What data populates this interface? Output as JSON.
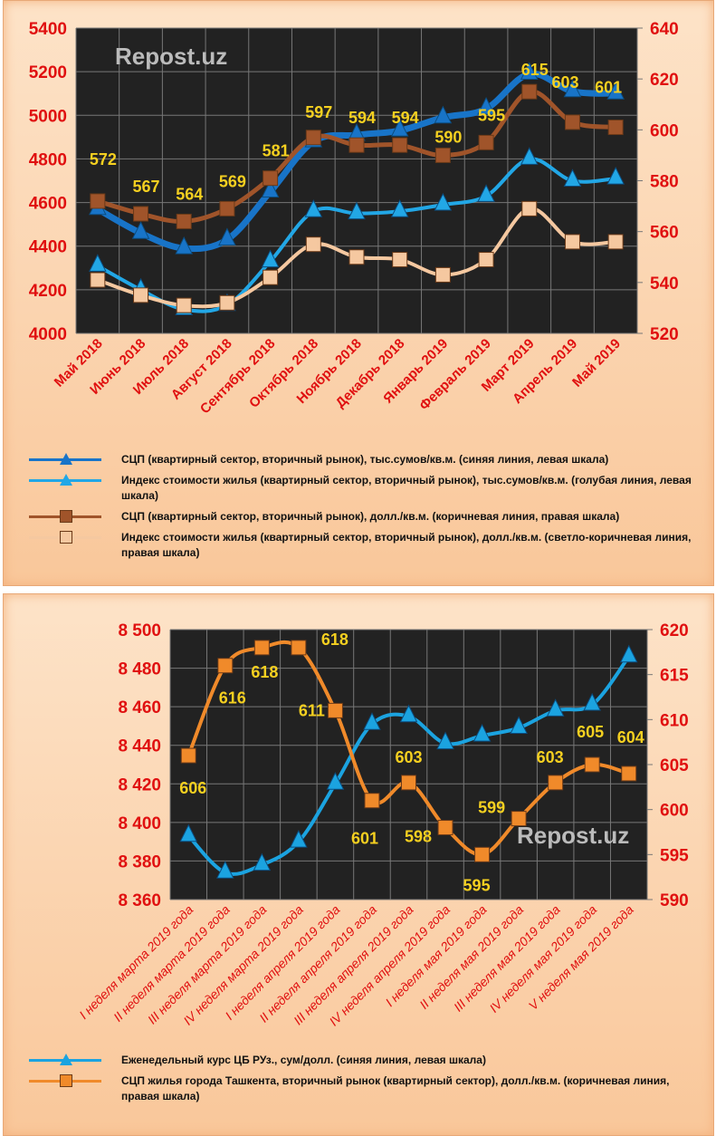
{
  "chart_data": [
    {
      "type": "line",
      "watermark": "Repost.uz",
      "categories": [
        "Май 2018",
        "Июнь 2018",
        "Июль 2018",
        "Август 2018",
        "Сентябрь 2018",
        "Октябрь 2018",
        "Ноябрь 2018",
        "Декабрь 2018",
        "Январь 2019",
        "Февраль 2019",
        "Март 2019",
        "Апрель 2019",
        "Май 2019"
      ],
      "ylim_left": [
        4000,
        5400
      ],
      "yticks_left": [
        4000,
        4200,
        4400,
        4600,
        4800,
        5000,
        5200,
        5400
      ],
      "ylim_right": [
        520,
        640
      ],
      "yticks_right": [
        520,
        540,
        560,
        580,
        600,
        620,
        640
      ],
      "series": [
        {
          "name": "СЦП (квартирный сектор, вторичный рынок), тыс.сумов/кв.м. (синяя линия,  левая шкала)",
          "axis": "left",
          "color": "#1874c8",
          "marker": "triangle",
          "values": [
            4570,
            4460,
            4390,
            4430,
            4650,
            4880,
            4910,
            4930,
            4990,
            5030,
            5190,
            5110,
            5100
          ]
        },
        {
          "name": "Индекс стоимости жилья (квартирный сектор, вторичный рынок),  тыс.сумов/кв.м. (голубая линия,  левая шкала)",
          "axis": "left",
          "color": "#22a7e6",
          "marker": "triangle",
          "values": [
            4310,
            4200,
            4110,
            4130,
            4330,
            4560,
            4550,
            4560,
            4590,
            4630,
            4800,
            4700,
            4710
          ]
        },
        {
          "name": "СЦП (квартирный сектор, вторичный рынок),  долл./кв.м. (коричневая линия,  правая шкала)",
          "axis": "right",
          "color": "#a0542a",
          "marker": "square",
          "labels": true,
          "values": [
            572,
            567,
            564,
            569,
            581,
            597,
            594,
            594,
            590,
            595,
            615,
            603,
            601
          ]
        },
        {
          "name": "Индекс стоимости жилья (квартирный сектор, вторичный рынок),  долл./кв.м. (светло-коричневая линия,  правая шкала)",
          "axis": "right",
          "color": "#f5c8a0",
          "marker": "square",
          "values": [
            541,
            535,
            531,
            532,
            542,
            555,
            550,
            549,
            543,
            549,
            569,
            556,
            556
          ]
        }
      ]
    },
    {
      "type": "line",
      "watermark": "Repost.uz",
      "categories": [
        "I неделя марта 2019 года",
        "II неделя марта 2019 года",
        "III неделя марта 2019 года",
        "IV неделя марта 2019 года",
        "I неделя апреля 2019 года",
        "II неделя апреля 2019 года",
        "III неделя апреля 2019 года",
        "IV неделя апреля 2019 года",
        "I неделя мая 2019 года",
        "II неделя мая 2019 года",
        "III неделя мая 2019 года",
        "IV неделя мая 2019 года",
        "V неделя мая 2019 года"
      ],
      "ylim_left": [
        8360,
        8500
      ],
      "yticks_left": [
        "8 360",
        "8 380",
        "8 400",
        "8 420",
        "8 440",
        "8 460",
        "8 480",
        "8 500"
      ],
      "ylim_right": [
        590,
        620
      ],
      "yticks_right": [
        590,
        595,
        600,
        605,
        610,
        615,
        620
      ],
      "series": [
        {
          "name": "Еженедельный курс ЦБ РУз., сум/долл. (синяя линия, левая шкала)",
          "axis": "left",
          "color": "#1ba3e0",
          "marker": "triangle",
          "values": [
            8393,
            8374,
            8378,
            8390,
            8420,
            8451,
            8455,
            8441,
            8445,
            8449,
            8458,
            8461,
            8486
          ]
        },
        {
          "name": "СЦП жилья города Ташкента, вторичный рынок (квартирный сектор), долл./кв.м. (коричневая линия, правая шкала)",
          "axis": "right",
          "color": "#f08a2a",
          "marker": "square",
          "labels": true,
          "values": [
            606,
            616,
            618,
            618,
            611,
            601,
            603,
            598,
            595,
            599,
            603,
            605,
            604
          ]
        }
      ]
    }
  ]
}
